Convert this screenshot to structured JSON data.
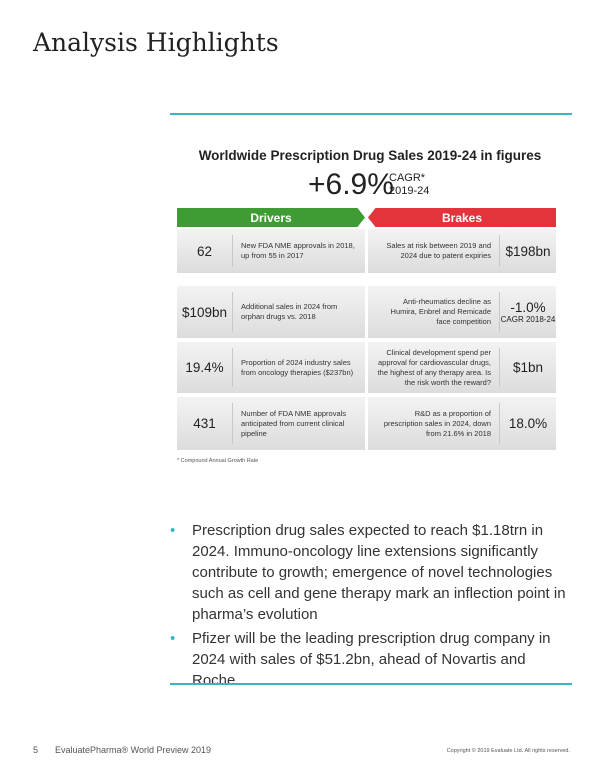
{
  "title": "Analysis Highlights",
  "figure": {
    "title": "Worldwide Prescription Drug Sales 2019-24 in figures",
    "headline": "+6.9%",
    "headline_label": "CAGR*",
    "headline_period": "2019-24",
    "drivers_label": "Drivers",
    "brakes_label": "Brakes",
    "drivers": [
      {
        "value": "62",
        "text": "New FDA NME approvals in 2018, up from 55 in 2017"
      },
      {
        "value": "$109bn",
        "text": "Additional sales in 2024 from orphan drugs vs. 2018"
      },
      {
        "value": "19.4%",
        "text": "Proportion of 2024 industry sales from oncology therapies ($237bn)"
      },
      {
        "value": "431",
        "text": "Number of FDA NME approvals anticipated from current clinical pipeline"
      }
    ],
    "brakes": [
      {
        "value": "$198bn",
        "text": "Sales at risk between 2019 and 2024 due to patent expiries"
      },
      {
        "value": "-1.0%",
        "sub": "CAGR 2018-24",
        "text": "Anti-rheumatics decline as Humira, Enbrel and Remicade face competition"
      },
      {
        "value": "$1bn",
        "text": "Clinical development spend per approval for cardiovascular drugs, the highest of any therapy area. Is the risk worth the reward?"
      },
      {
        "value": "18.0%",
        "text": "R&D as a proportion of prescription sales in 2024, down from 21.6% in 2018"
      }
    ],
    "footnote": "* Compound Annual Growth Rate",
    "colors": {
      "drivers": "#3f9c35",
      "brakes": "#e3343c",
      "accent": "#3ab5c4"
    }
  },
  "bullets": [
    "Prescription drug sales expected to reach $1.18trn in 2024. Immuno-oncology line extensions significantly contribute to growth; emergence of novel technologies such as cell and gene therapy mark an inflection point in pharma’s evolution",
    "Pfizer will be the leading prescription drug company in 2024 with sales of $51.2bn, ahead of Novartis and Roche"
  ],
  "footer": {
    "page": "5",
    "publication": "EvaluatePharma® World Preview 2019",
    "copyright": "Copyright © 2019 Evaluate Ltd. All rights reserved."
  }
}
